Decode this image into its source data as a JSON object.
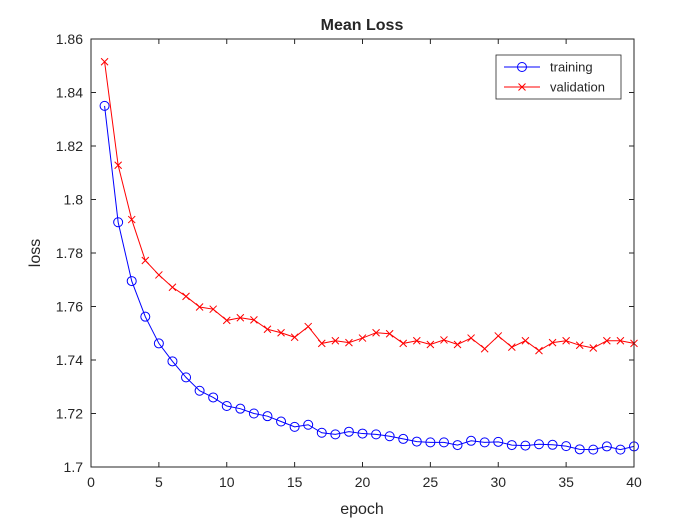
{
  "chart_data": {
    "type": "line",
    "title": "Mean Loss",
    "xlabel": "epoch",
    "ylabel": "loss",
    "xlim": [
      0,
      40
    ],
    "ylim": [
      1.7,
      1.86
    ],
    "xticks": [
      0,
      5,
      10,
      15,
      20,
      25,
      30,
      35,
      40
    ],
    "xtick_labels": [
      "0",
      "5",
      "10",
      "15",
      "20",
      "25",
      "30",
      "35",
      "40"
    ],
    "yticks": [
      1.7,
      1.72,
      1.74,
      1.76,
      1.78,
      1.8,
      1.82,
      1.84,
      1.86
    ],
    "ytick_labels": [
      "1.7",
      "1.72",
      "1.74",
      "1.76",
      "1.78",
      "1.8",
      "1.82",
      "1.84",
      "1.86"
    ],
    "grid": false,
    "legend_position": "top-right",
    "x": [
      1,
      2,
      3,
      4,
      5,
      6,
      7,
      8,
      9,
      10,
      11,
      12,
      13,
      14,
      15,
      16,
      17,
      18,
      19,
      20,
      21,
      22,
      23,
      24,
      25,
      26,
      27,
      28,
      29,
      30,
      31,
      32,
      33,
      34,
      35,
      36,
      37,
      38,
      39,
      40
    ],
    "series": [
      {
        "name": "training",
        "color": "#0000ff",
        "marker": "circle",
        "values": [
          1.835,
          1.7915,
          1.7695,
          1.7562,
          1.7462,
          1.7395,
          1.7335,
          1.7285,
          1.726,
          1.7228,
          1.7218,
          1.72,
          1.719,
          1.717,
          1.715,
          1.7158,
          1.7128,
          1.7122,
          1.7132,
          1.7125,
          1.7122,
          1.7115,
          1.7105,
          1.7095,
          1.7092,
          1.7092,
          1.7082,
          1.7098,
          1.7092,
          1.7094,
          1.7082,
          1.708,
          1.7085,
          1.7083,
          1.7078,
          1.7066,
          1.7065,
          1.7077,
          1.7065,
          1.7077
        ]
      },
      {
        "name": "validation",
        "color": "#ff0000",
        "marker": "x",
        "values": [
          1.8515,
          1.8128,
          1.7925,
          1.7772,
          1.7718,
          1.7672,
          1.7638,
          1.7598,
          1.759,
          1.7548,
          1.7558,
          1.755,
          1.7515,
          1.7502,
          1.7485,
          1.7525,
          1.7462,
          1.7472,
          1.7465,
          1.7482,
          1.7502,
          1.7498,
          1.7462,
          1.7472,
          1.7458,
          1.7475,
          1.7458,
          1.7482,
          1.7442,
          1.749,
          1.7448,
          1.7472,
          1.7435,
          1.7465,
          1.7472,
          1.7455,
          1.7445,
          1.7472,
          1.7472,
          1.7462
        ]
      }
    ]
  }
}
